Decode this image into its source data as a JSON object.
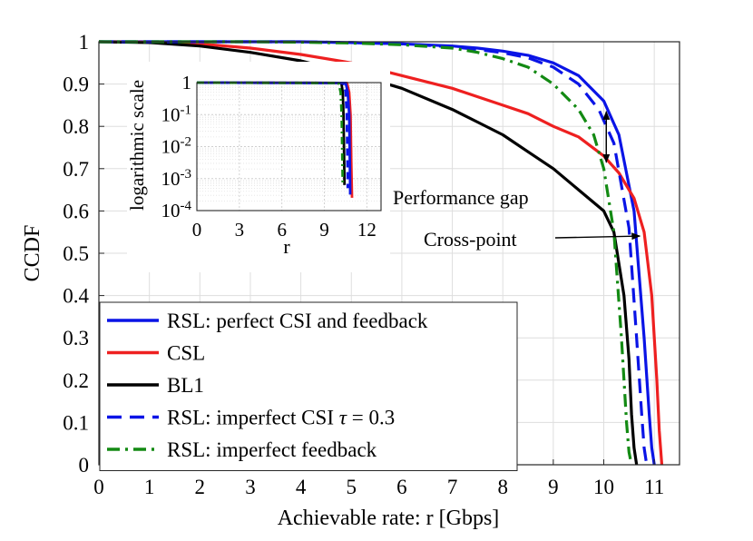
{
  "chart_data": [
    {
      "type": "line",
      "title": "",
      "xlabel": "Achievable rate: r [Gbps]",
      "ylabel": "CCDF",
      "xlim": [
        0,
        11.5
      ],
      "ylim": [
        0,
        1
      ],
      "xticks": [
        0,
        1,
        2,
        3,
        4,
        5,
        6,
        7,
        8,
        9,
        10,
        11
      ],
      "yticks": [
        0,
        0.1,
        0.2,
        0.3,
        0.4,
        0.5,
        0.6,
        0.7,
        0.8,
        0.9,
        1
      ],
      "grid": true,
      "legend_position": "bottom-left",
      "series": [
        {
          "name": "RSL: perfect CSI and feedback",
          "color": "#0a14e6",
          "dash": "solid",
          "x": [
            0,
            1,
            2,
            3,
            4,
            5,
            6,
            7,
            7.5,
            8,
            8.5,
            9,
            9.5,
            10,
            10.3,
            10.6,
            10.8,
            10.9,
            10.95,
            11.0
          ],
          "y": [
            1,
            1,
            1,
            1,
            1,
            0.998,
            0.995,
            0.99,
            0.985,
            0.978,
            0.968,
            0.95,
            0.92,
            0.86,
            0.78,
            0.6,
            0.3,
            0.12,
            0.04,
            0
          ]
        },
        {
          "name": "CSL",
          "color": "#ee2020",
          "dash": "solid",
          "x": [
            0,
            1,
            2,
            3,
            4,
            5,
            6,
            7,
            8,
            8.5,
            9,
            9.5,
            10,
            10.3,
            10.6,
            10.8,
            10.95,
            11.05,
            11.1,
            11.15
          ],
          "y": [
            1,
            0.999,
            0.995,
            0.985,
            0.97,
            0.95,
            0.92,
            0.89,
            0.85,
            0.83,
            0.8,
            0.775,
            0.73,
            0.69,
            0.63,
            0.55,
            0.4,
            0.2,
            0.08,
            0
          ]
        },
        {
          "name": "BL1",
          "color": "#000000",
          "dash": "solid",
          "x": [
            0,
            1,
            2,
            3,
            4,
            5,
            6,
            7,
            7.5,
            8,
            8.5,
            9,
            9.5,
            10,
            10.2,
            10.4,
            10.5,
            10.55,
            10.6,
            10.65
          ],
          "y": [
            1,
            0.998,
            0.99,
            0.975,
            0.955,
            0.925,
            0.89,
            0.84,
            0.81,
            0.78,
            0.74,
            0.7,
            0.65,
            0.6,
            0.55,
            0.4,
            0.25,
            0.12,
            0.04,
            0
          ]
        },
        {
          "name": "RSL: imperfect CSI τ = 0.3",
          "color": "#0a14e6",
          "dash": "dashed",
          "x": [
            0,
            1,
            2,
            3,
            4,
            5,
            6,
            7,
            7.5,
            8,
            8.5,
            9,
            9.5,
            9.9,
            10.2,
            10.5,
            10.65,
            10.75,
            10.8,
            10.85
          ],
          "y": [
            1,
            1,
            1,
            1,
            1,
            0.998,
            0.995,
            0.988,
            0.982,
            0.974,
            0.962,
            0.94,
            0.9,
            0.84,
            0.76,
            0.56,
            0.3,
            0.12,
            0.04,
            0
          ]
        },
        {
          "name": "RSL: imperfect feedback",
          "color": "#138a13",
          "dash": "dashdot",
          "x": [
            0,
            1,
            2,
            3,
            4,
            5,
            6,
            7,
            7.5,
            8,
            8.5,
            9,
            9.5,
            9.8,
            10.0,
            10.2,
            10.35,
            10.45,
            10.5,
            10.55
          ],
          "y": [
            1,
            1,
            1,
            1,
            0.999,
            0.997,
            0.993,
            0.985,
            0.975,
            0.96,
            0.94,
            0.9,
            0.84,
            0.78,
            0.7,
            0.55,
            0.3,
            0.1,
            0.03,
            0
          ]
        }
      ],
      "annotations": [
        {
          "text": "Performance gap",
          "x": 10.05,
          "y": 0.8
        },
        {
          "text": "Cross-point",
          "x": 10.75,
          "y": 0.545
        }
      ]
    },
    {
      "type": "line",
      "title": "",
      "xlabel": "r",
      "ylabel": "logarithmic scale",
      "xlim": [
        0,
        13
      ],
      "ylim_log10": [
        -4,
        0
      ],
      "xticks": [
        0,
        3,
        6,
        9,
        12
      ],
      "ytick_labels": [
        "1",
        "10",
        "10",
        "10",
        "10"
      ],
      "ytick_exponents": [
        "",
        "-1",
        "-2",
        "-3",
        "-4"
      ],
      "grid": true,
      "series": [
        {
          "name": "BL1",
          "color": "#000000",
          "dash": "solid",
          "x": [
            0,
            10.2,
            10.3,
            10.35,
            10.4,
            10.42
          ],
          "log10_y": [
            0,
            -0.01,
            -0.3,
            -1,
            -2.5,
            -3.2
          ]
        },
        {
          "name": "CSL",
          "color": "#ee2020",
          "dash": "solid",
          "x": [
            0,
            10.6,
            10.75,
            10.85,
            10.9,
            10.95
          ],
          "log10_y": [
            0,
            -0.01,
            -0.3,
            -1,
            -2.5,
            -3.6
          ]
        },
        {
          "name": "RSL: perfect CSI and feedback",
          "color": "#0a14e6",
          "dash": "solid",
          "x": [
            0,
            10.5,
            10.65,
            10.75,
            10.8,
            10.82
          ],
          "log10_y": [
            0,
            -0.01,
            -0.3,
            -1,
            -2.5,
            -3.5
          ]
        },
        {
          "name": "RSL: imperfect CSI τ = 0.3",
          "color": "#0a14e6",
          "dash": "dashed",
          "x": [
            0,
            10.35,
            10.5,
            10.58,
            10.63,
            10.65
          ],
          "log10_y": [
            0,
            -0.01,
            -0.3,
            -1,
            -2.5,
            -3.3
          ]
        },
        {
          "name": "RSL: imperfect feedback",
          "color": "#138a13",
          "dash": "dashdot",
          "x": [
            0,
            10.0,
            10.15,
            10.22,
            10.27,
            10.3
          ],
          "log10_y": [
            0,
            -0.01,
            -0.3,
            -1,
            -2.5,
            -3.2
          ]
        }
      ]
    }
  ]
}
